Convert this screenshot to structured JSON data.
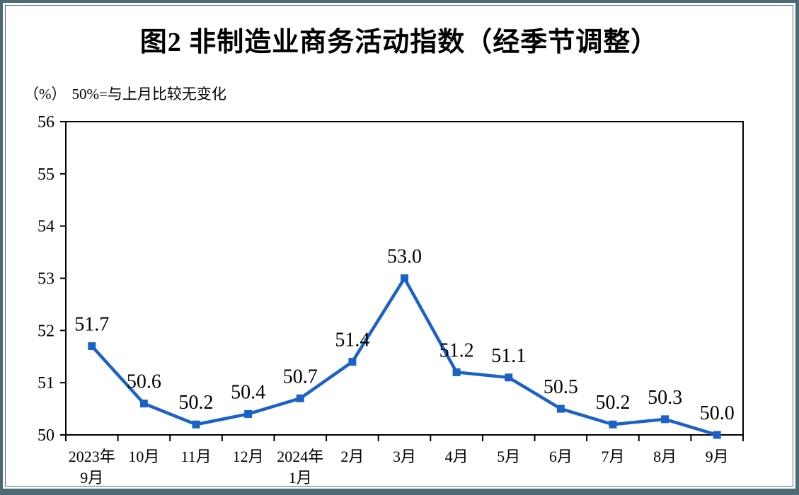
{
  "figure": {
    "title": "图2 非制造业商务活动指数（经季节调整）",
    "subtitle_unit": "（%）",
    "subtitle_note": "50%=与上月比较无变化"
  },
  "colors": {
    "frame_teal": "#4c6a74",
    "line_blue": "#1a62c6",
    "axis_black": "#000000",
    "background": "#ffffff"
  },
  "chart_data": {
    "type": "line",
    "title": "图2 非制造业商务活动指数（经季节调整）",
    "unit_label": "（%）",
    "note": "50%=与上月比较无变化",
    "series_name": "非制造业商务活动指数",
    "categories": [
      [
        "2023年",
        "9月"
      ],
      [
        "10月"
      ],
      [
        "11月"
      ],
      [
        "12月"
      ],
      [
        "2024年",
        "1月"
      ],
      [
        "2月"
      ],
      [
        "3月"
      ],
      [
        "4月"
      ],
      [
        "5月"
      ],
      [
        "6月"
      ],
      [
        "7月"
      ],
      [
        "8月"
      ],
      [
        "9月"
      ]
    ],
    "values": [
      51.7,
      50.6,
      50.2,
      50.4,
      50.7,
      51.4,
      53.0,
      51.2,
      51.1,
      50.5,
      50.2,
      50.3,
      50.0
    ],
    "ylim": [
      50,
      56
    ],
    "yticks": [
      50,
      51,
      52,
      53,
      54,
      55,
      56
    ],
    "grid": false,
    "legend": "none",
    "marker": "square",
    "line_color": "#1a62c6",
    "axis_color": "#000000",
    "data_label_decimals": 1
  }
}
